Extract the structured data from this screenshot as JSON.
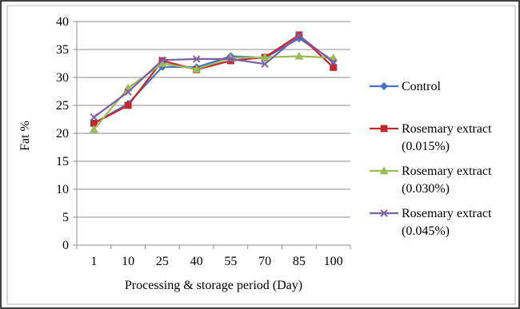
{
  "chart_data": {
    "type": "line",
    "title": "",
    "xlabel": "Processing & storage period (Day)",
    "ylabel": "Fat %",
    "categories": [
      "1",
      "10",
      "25",
      "40",
      "55",
      "70",
      "85",
      "100"
    ],
    "ylim": [
      0,
      40
    ],
    "yticks": [
      0,
      5,
      10,
      15,
      20,
      25,
      30,
      35,
      40
    ],
    "grid": true,
    "legend": "right",
    "series": [
      {
        "name": "Control",
        "name_lines": [
          "Control"
        ],
        "color": "#4472C4",
        "marker": "diamond",
        "values": [
          21.8,
          25.3,
          31.9,
          31.8,
          33.8,
          33.5,
          37.0,
          33.0
        ]
      },
      {
        "name": "Rosemary extract (0.015%)",
        "name_lines": [
          "Rosemary extract",
          "(0.015%)"
        ],
        "color": "#C0282D",
        "marker": "square",
        "values": [
          21.8,
          25.0,
          33.0,
          31.4,
          33.0,
          33.6,
          37.6,
          31.8
        ]
      },
      {
        "name": "Rosemary extract (0.030%)",
        "name_lines": [
          "Rosemary extract",
          "(0.030%)"
        ],
        "color": "#9BBB59",
        "marker": "triangle",
        "values": [
          20.7,
          28.1,
          32.5,
          31.5,
          33.5,
          33.6,
          33.8,
          33.5
        ]
      },
      {
        "name": "Rosemary extract (0.045%)",
        "name_lines": [
          "Rosemary extract",
          "(0.045%)"
        ],
        "color": "#7F5FA3",
        "marker": "x",
        "values": [
          22.9,
          27.4,
          33.1,
          33.3,
          33.3,
          32.4,
          37.5,
          32.7
        ]
      }
    ]
  }
}
